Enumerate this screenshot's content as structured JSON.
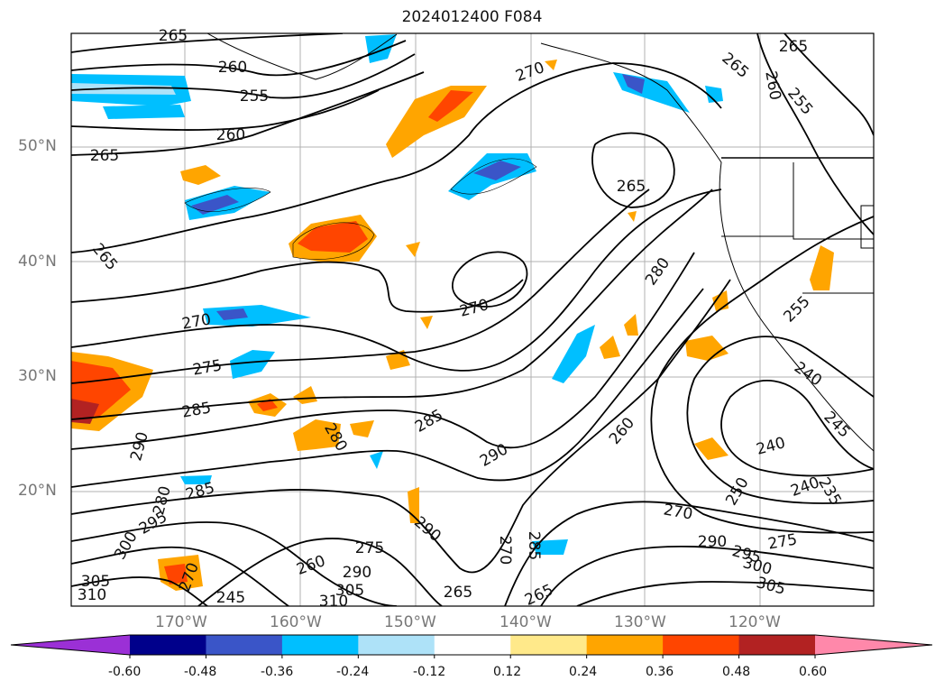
{
  "title": "2024012400 F084",
  "lat_labels": [
    "50°N",
    "40°N",
    "30°N",
    "20°N"
  ],
  "lon_labels": [
    "170°W",
    "160°W",
    "150°W",
    "140°W",
    "130°W",
    "120°W"
  ],
  "colorbar": {
    "ticks": [
      "-0.60",
      "-0.48",
      "-0.36",
      "-0.24",
      "-0.12",
      "0.12",
      "0.24",
      "0.36",
      "0.48",
      "0.60"
    ],
    "colors": [
      "#9b30d6",
      "#00008b",
      "#3a55c8",
      "#00bfff",
      "#aee2f8",
      "#ffffff",
      "#ffe98a",
      "#ffa500",
      "#ff4500",
      "#b22222",
      "#ff88aa"
    ]
  },
  "contour_labels": [
    {
      "text": "265"
    },
    {
      "text": "260"
    },
    {
      "text": "255"
    },
    {
      "text": "260"
    },
    {
      "text": "265"
    },
    {
      "text": "270"
    },
    {
      "text": "265"
    },
    {
      "text": "260"
    },
    {
      "text": "255"
    },
    {
      "text": "265"
    },
    {
      "text": "265"
    },
    {
      "text": "280"
    },
    {
      "text": "270"
    },
    {
      "text": "270"
    },
    {
      "text": "275"
    },
    {
      "text": "265"
    },
    {
      "text": "255"
    },
    {
      "text": "240"
    },
    {
      "text": "285"
    },
    {
      "text": "280"
    },
    {
      "text": "285"
    },
    {
      "text": "290"
    },
    {
      "text": "290"
    },
    {
      "text": "260"
    },
    {
      "text": "240"
    },
    {
      "text": "245"
    },
    {
      "text": "285"
    },
    {
      "text": "280"
    },
    {
      "text": "295"
    },
    {
      "text": "250"
    },
    {
      "text": "240"
    },
    {
      "text": "235"
    },
    {
      "text": "270"
    },
    {
      "text": "290"
    },
    {
      "text": "275"
    },
    {
      "text": "295"
    },
    {
      "text": "300"
    },
    {
      "text": "305"
    },
    {
      "text": "270"
    },
    {
      "text": "285"
    },
    {
      "text": "290"
    },
    {
      "text": "300"
    },
    {
      "text": "305"
    },
    {
      "text": "310"
    },
    {
      "text": "245"
    },
    {
      "text": "260"
    },
    {
      "text": "290"
    },
    {
      "text": "305"
    },
    {
      "text": "310"
    },
    {
      "text": "265"
    },
    {
      "text": "265"
    },
    {
      "text": "275"
    },
    {
      "text": "270"
    }
  ]
}
